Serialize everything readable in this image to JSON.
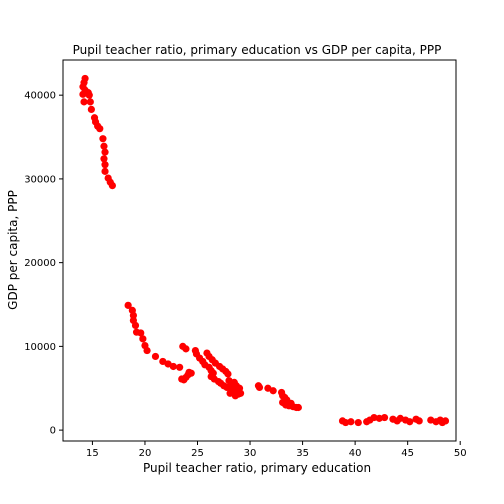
{
  "chart_data": {
    "type": "scatter",
    "title": "Pupil teacher ratio, primary education  vs GDP per capita, PPP",
    "xlabel": "Pupil teacher ratio, primary education",
    "ylabel": "GDP per capita, PPP",
    "xlim": [
      12.2,
      49.6
    ],
    "ylim": [
      -1300,
      44200
    ],
    "xticks": [
      15,
      20,
      25,
      30,
      35,
      40,
      45,
      50
    ],
    "yticks": [
      0,
      10000,
      20000,
      30000,
      40000
    ],
    "grid": false,
    "legend": "none",
    "marker_color": "#ff0000",
    "points": [
      [
        14.3,
        42000
      ],
      [
        14.2,
        41500
      ],
      [
        14.1,
        41000
      ],
      [
        14.3,
        40600
      ],
      [
        14.1,
        40100
      ],
      [
        14.6,
        40300
      ],
      [
        14.7,
        40000
      ],
      [
        14.2,
        39200
      ],
      [
        14.8,
        39200
      ],
      [
        14.9,
        38300
      ],
      [
        15.2,
        37300
      ],
      [
        15.3,
        36800
      ],
      [
        15.5,
        36300
      ],
      [
        15.7,
        36000
      ],
      [
        16.0,
        34800
      ],
      [
        16.1,
        33900
      ],
      [
        16.2,
        33200
      ],
      [
        16.1,
        32400
      ],
      [
        16.2,
        31700
      ],
      [
        16.2,
        30900
      ],
      [
        16.5,
        30100
      ],
      [
        16.7,
        29600
      ],
      [
        16.9,
        29200
      ],
      [
        18.4,
        14900
      ],
      [
        18.8,
        14300
      ],
      [
        18.9,
        13700
      ],
      [
        18.9,
        13100
      ],
      [
        19.1,
        12500
      ],
      [
        19.2,
        11700
      ],
      [
        19.6,
        11600
      ],
      [
        19.8,
        10900
      ],
      [
        20.0,
        10100
      ],
      [
        20.2,
        9500
      ],
      [
        21.0,
        8800
      ],
      [
        21.7,
        8200
      ],
      [
        22.2,
        7900
      ],
      [
        22.7,
        7600
      ],
      [
        23.3,
        7500
      ],
      [
        23.6,
        10000
      ],
      [
        23.9,
        9700
      ],
      [
        23.5,
        6100
      ],
      [
        23.7,
        6000
      ],
      [
        23.9,
        6300
      ],
      [
        24.1,
        6600
      ],
      [
        24.4,
        6800
      ],
      [
        24.2,
        6900
      ],
      [
        24.8,
        9500
      ],
      [
        24.9,
        9100
      ],
      [
        25.2,
        8600
      ],
      [
        25.5,
        8200
      ],
      [
        25.7,
        7800
      ],
      [
        25.9,
        9200
      ],
      [
        26.1,
        8800
      ],
      [
        26.4,
        8400
      ],
      [
        26.7,
        8000
      ],
      [
        27.1,
        7600
      ],
      [
        27.4,
        7300
      ],
      [
        27.7,
        7000
      ],
      [
        27.9,
        6700
      ],
      [
        26.1,
        7500
      ],
      [
        26.3,
        7100
      ],
      [
        26.5,
        6800
      ],
      [
        26.3,
        6400
      ],
      [
        26.6,
        6100
      ],
      [
        27.0,
        5800
      ],
      [
        27.2,
        5600
      ],
      [
        27.5,
        5300
      ],
      [
        27.8,
        5100
      ],
      [
        28.0,
        5900
      ],
      [
        28.2,
        5500
      ],
      [
        28.4,
        5200
      ],
      [
        28.6,
        4900
      ],
      [
        28.9,
        4600
      ],
      [
        29.1,
        4400
      ],
      [
        28.1,
        4400
      ],
      [
        28.3,
        4800
      ],
      [
        28.5,
        5700
      ],
      [
        28.7,
        5300
      ],
      [
        29.0,
        5000
      ],
      [
        28.6,
        4100
      ],
      [
        28.9,
        4300
      ],
      [
        30.8,
        5300
      ],
      [
        30.9,
        5100
      ],
      [
        31.7,
        5000
      ],
      [
        32.2,
        4700
      ],
      [
        33.0,
        4500
      ],
      [
        33.1,
        4100
      ],
      [
        33.3,
        3900
      ],
      [
        33.1,
        3300
      ],
      [
        33.4,
        3000
      ],
      [
        33.7,
        2900
      ],
      [
        34.1,
        2800
      ],
      [
        34.4,
        2700
      ],
      [
        34.6,
        2700
      ],
      [
        33.5,
        3600
      ],
      [
        33.9,
        3200
      ],
      [
        38.8,
        1100
      ],
      [
        39.1,
        900
      ],
      [
        39.6,
        1000
      ],
      [
        40.3,
        900
      ],
      [
        41.1,
        1000
      ],
      [
        41.4,
        1200
      ],
      [
        41.8,
        1500
      ],
      [
        42.3,
        1400
      ],
      [
        42.8,
        1500
      ],
      [
        43.6,
        1300
      ],
      [
        44.0,
        1100
      ],
      [
        44.3,
        1400
      ],
      [
        44.8,
        1200
      ],
      [
        45.2,
        1000
      ],
      [
        45.8,
        1300
      ],
      [
        46.1,
        1100
      ],
      [
        47.2,
        1200
      ],
      [
        47.7,
        1000
      ],
      [
        48.1,
        1200
      ],
      [
        48.3,
        900
      ],
      [
        48.6,
        1100
      ]
    ]
  }
}
